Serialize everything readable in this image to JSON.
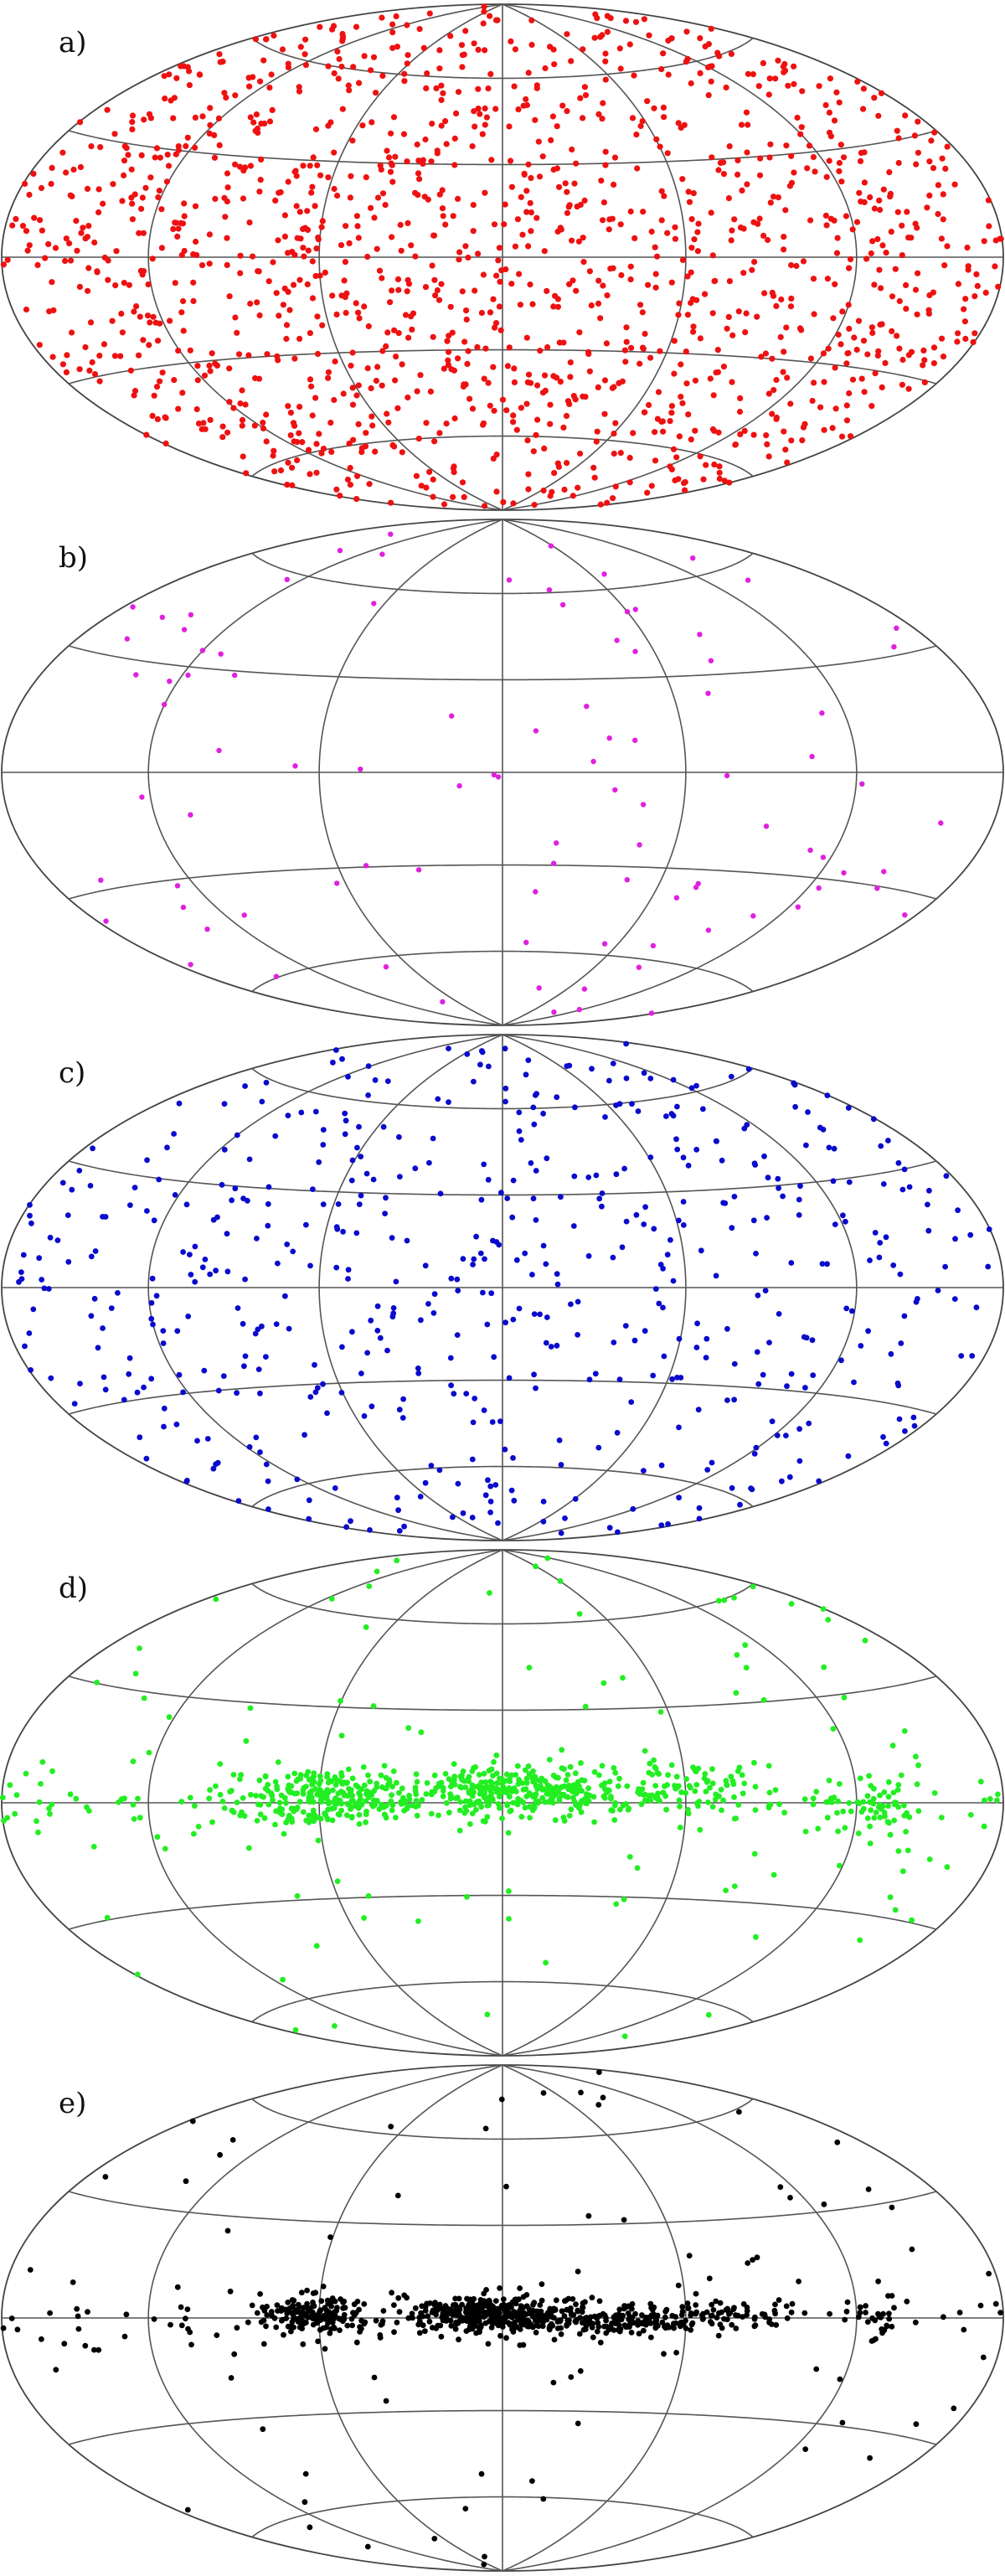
{
  "chart_data": [
    {
      "type": "scatter",
      "label": "a)",
      "color": "#ee1111",
      "projection": "aitoff-hammer",
      "distribution": "uniform",
      "count": 1400,
      "seed": 11,
      "point_radius_px": 3.6,
      "grid": true,
      "meridians_deg": [
        -120,
        -60,
        0,
        60,
        120
      ],
      "parallels_deg": [
        -60,
        -30,
        0,
        30,
        60
      ]
    },
    {
      "type": "scatter",
      "label": "b)",
      "color": "#e020e0",
      "projection": "aitoff-hammer",
      "distribution": "uniform",
      "count": 95,
      "seed": 23,
      "point_radius_px": 3.2,
      "grid": true,
      "meridians_deg": [
        -120,
        -60,
        0,
        60,
        120
      ],
      "parallels_deg": [
        -60,
        -30,
        0,
        30,
        60
      ]
    },
    {
      "type": "scatter",
      "label": "c)",
      "color": "#0a0acc",
      "projection": "aitoff-hammer",
      "distribution": "uniform",
      "count": 560,
      "seed": 37,
      "point_radius_px": 3.4,
      "grid": true,
      "meridians_deg": [
        -120,
        -60,
        0,
        60,
        120
      ],
      "parallels_deg": [
        -60,
        -30,
        0,
        30,
        60
      ]
    },
    {
      "type": "scatter",
      "label": "d)",
      "color": "#22ee22",
      "projection": "aitoff-hammer",
      "distribution": "galactic-plane",
      "count": 900,
      "seed": 53,
      "point_radius_px": 3.4,
      "grid": true,
      "meridians_deg": [
        -120,
        -60,
        0,
        60,
        120
      ],
      "parallels_deg": [
        -60,
        -30,
        0,
        30,
        60
      ],
      "clusters_deg": [
        {
          "lon": -60,
          "lat": 2,
          "spread_lon": 14,
          "spread_lat": 4,
          "n": 220
        },
        {
          "lon": 5,
          "lat": 4,
          "spread_lon": 20,
          "spread_lat": 4,
          "n": 300
        },
        {
          "lon": 60,
          "lat": 4,
          "spread_lon": 18,
          "spread_lat": 4,
          "n": 80
        },
        {
          "lon": 130,
          "lat": 0,
          "spread_lon": 8,
          "spread_lat": 4,
          "n": 50
        }
      ]
    },
    {
      "type": "scatter",
      "label": "e)",
      "color": "#000000",
      "projection": "aitoff-hammer",
      "distribution": "galactic-plane",
      "count": 900,
      "seed": 71,
      "point_radius_px": 3.4,
      "grid": true,
      "meridians_deg": [
        -120,
        -60,
        0,
        60,
        120
      ],
      "parallels_deg": [
        -60,
        -30,
        0,
        30,
        60
      ],
      "clusters_deg": [
        {
          "lon": -62,
          "lat": 1,
          "spread_lon": 10,
          "spread_lat": 3,
          "n": 160
        },
        {
          "lon": 0,
          "lat": 1,
          "spread_lon": 16,
          "spread_lat": 3,
          "n": 380
        },
        {
          "lon": 45,
          "lat": -1,
          "spread_lon": 14,
          "spread_lat": 2,
          "n": 120
        },
        {
          "lon": 75,
          "lat": 1,
          "spread_lon": 10,
          "spread_lat": 2,
          "n": 60
        },
        {
          "lon": 128,
          "lat": 1,
          "spread_lon": 5,
          "spread_lat": 3,
          "n": 25
        }
      ]
    }
  ]
}
